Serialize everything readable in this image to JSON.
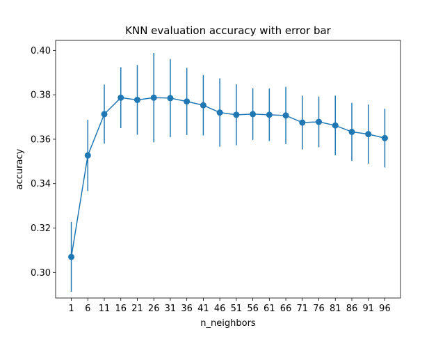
{
  "chart_data": {
    "type": "line",
    "title": "KNN evaluation accuracy with error bar",
    "xlabel": "n_neighbors",
    "ylabel": "accuracy",
    "x": [
      1,
      6,
      11,
      16,
      21,
      26,
      31,
      36,
      41,
      46,
      51,
      56,
      61,
      66,
      71,
      76,
      81,
      86,
      91,
      96
    ],
    "series": [
      {
        "values": [
          0.307,
          0.3527,
          0.3713,
          0.3787,
          0.3777,
          0.3787,
          0.3785,
          0.377,
          0.3753,
          0.372,
          0.371,
          0.3713,
          0.371,
          0.3707,
          0.3675,
          0.3678,
          0.3662,
          0.3633,
          0.3623,
          0.3605
        ],
        "errors": [
          0.0157,
          0.016,
          0.0133,
          0.0137,
          0.0157,
          0.0201,
          0.0176,
          0.0151,
          0.0136,
          0.0154,
          0.0137,
          0.0116,
          0.0118,
          0.0129,
          0.0121,
          0.0114,
          0.0134,
          0.0131,
          0.0133,
          0.0132
        ],
        "color": "#1f77b4"
      }
    ],
    "xticks": [
      "1",
      "6",
      "11",
      "16",
      "21",
      "26",
      "31",
      "36",
      "41",
      "46",
      "51",
      "56",
      "61",
      "66",
      "71",
      "76",
      "81",
      "86",
      "91",
      "96"
    ],
    "yticks": [
      "0.30",
      "0.32",
      "0.34",
      "0.36",
      "0.38",
      "0.40"
    ],
    "xlim": [
      -3.75,
      100.75
    ],
    "ylim": [
      0.2885,
      0.4045
    ],
    "grid": false,
    "legend": "none"
  }
}
